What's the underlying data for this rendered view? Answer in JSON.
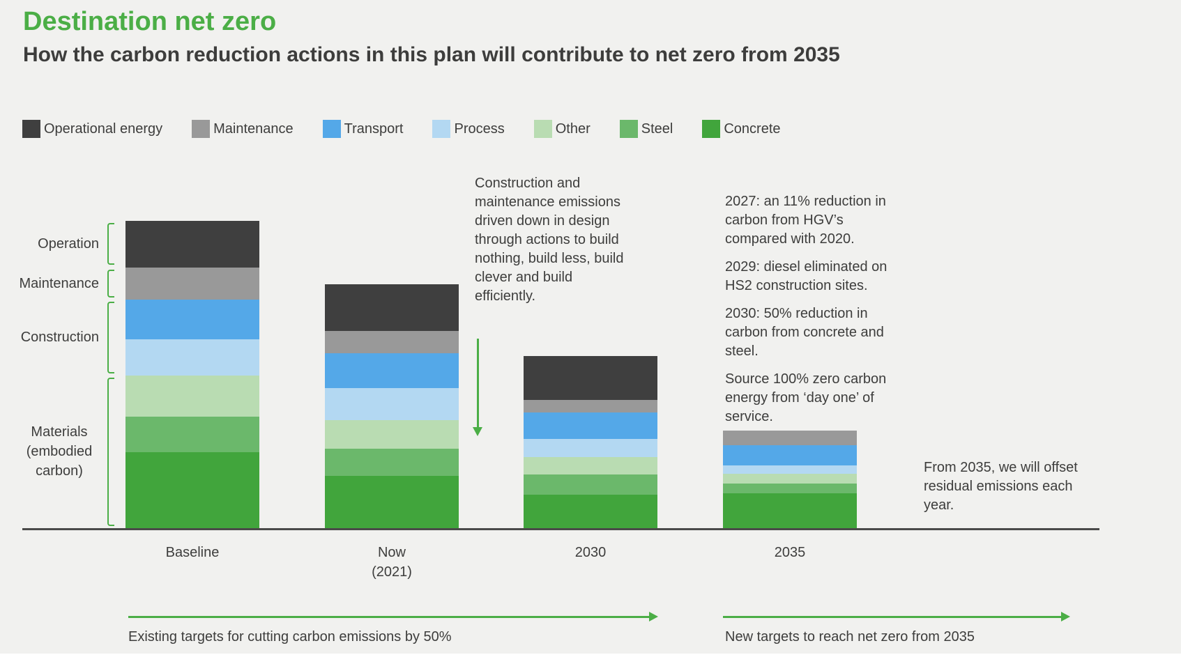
{
  "page": {
    "title": "Destination net zero",
    "subtitle": "How the carbon reduction actions in this plan will contribute to net zero from 2035"
  },
  "colors": {
    "accent_green": "#4bae46",
    "background": "#f1f1ef",
    "text": "#3d3d3c",
    "axis_line": "#4a4a49"
  },
  "chart_data": {
    "type": "bar",
    "stacked": true,
    "title": "Destination net zero",
    "subtitle": "How the carbon reduction actions in this plan will contribute to net zero from 2035",
    "legend_position": "top",
    "grid": false,
    "values_unit": "relative emission units (baseline total stack = 412)",
    "ylim": [
      0,
      412
    ],
    "categories": [
      {
        "id": "baseline",
        "label": "Baseline",
        "sublabel": ""
      },
      {
        "id": "now",
        "label": "Now",
        "sublabel": "(2021)"
      },
      {
        "id": "2030",
        "label": "2030",
        "sublabel": ""
      },
      {
        "id": "2035",
        "label": "2035",
        "sublabel": ""
      }
    ],
    "series": [
      {
        "id": "operational-energy",
        "name": "Operational energy",
        "color": "#3f3f3f",
        "values": [
          62,
          62,
          59,
          0
        ]
      },
      {
        "id": "maintenance",
        "name": "Maintenance",
        "color": "#999999",
        "values": [
          43,
          30,
          17,
          20
        ]
      },
      {
        "id": "transport",
        "name": "Transport",
        "color": "#54a8e8",
        "values": [
          54,
          47,
          35,
          27
        ]
      },
      {
        "id": "process",
        "name": "Process",
        "color": "#b3d8f2",
        "values": [
          48,
          43,
          25,
          11
        ]
      },
      {
        "id": "other",
        "name": "Other",
        "color": "#b9dcb2",
        "values": [
          55,
          38,
          23,
          13
        ]
      },
      {
        "id": "steel",
        "name": "Steel",
        "color": "#6bb86b",
        "values": [
          48,
          37,
          27,
          13
        ]
      },
      {
        "id": "concrete",
        "name": "Concrete",
        "color": "#41a53c",
        "values": [
          102,
          70,
          45,
          47
        ]
      }
    ],
    "left_axis_groups": [
      {
        "label": "Operation",
        "segments": [
          "operational-energy"
        ]
      },
      {
        "label": "Maintenance",
        "segments": [
          "maintenance"
        ]
      },
      {
        "label": "Construction",
        "segments": [
          "transport",
          "process"
        ]
      },
      {
        "label": "Materials (embodied carbon)",
        "lines": [
          "Materials",
          "(embodied",
          "carbon)"
        ],
        "segments": [
          "other",
          "steel",
          "concrete"
        ]
      }
    ],
    "annotations": {
      "design_note": "Construction and maintenance emissions driven down in design through actions to build nothing, build less, build clever and build efficiently.",
      "milestones": [
        "2027: an 11% reduction in carbon from HGV’s compared with 2020.",
        "2029: diesel eliminated on HS2 construction sites.",
        "2030: 50% reduction in carbon from concrete and steel.",
        "Source 100% zero carbon energy from ‘day one’ of service."
      ],
      "offset_note": "From 2035, we will offset residual emissions each year."
    }
  },
  "timeline": {
    "existing": {
      "label": "Existing targets for cutting carbon emissions by 50%"
    },
    "new": {
      "label": "New targets to reach net zero from 2035"
    }
  }
}
